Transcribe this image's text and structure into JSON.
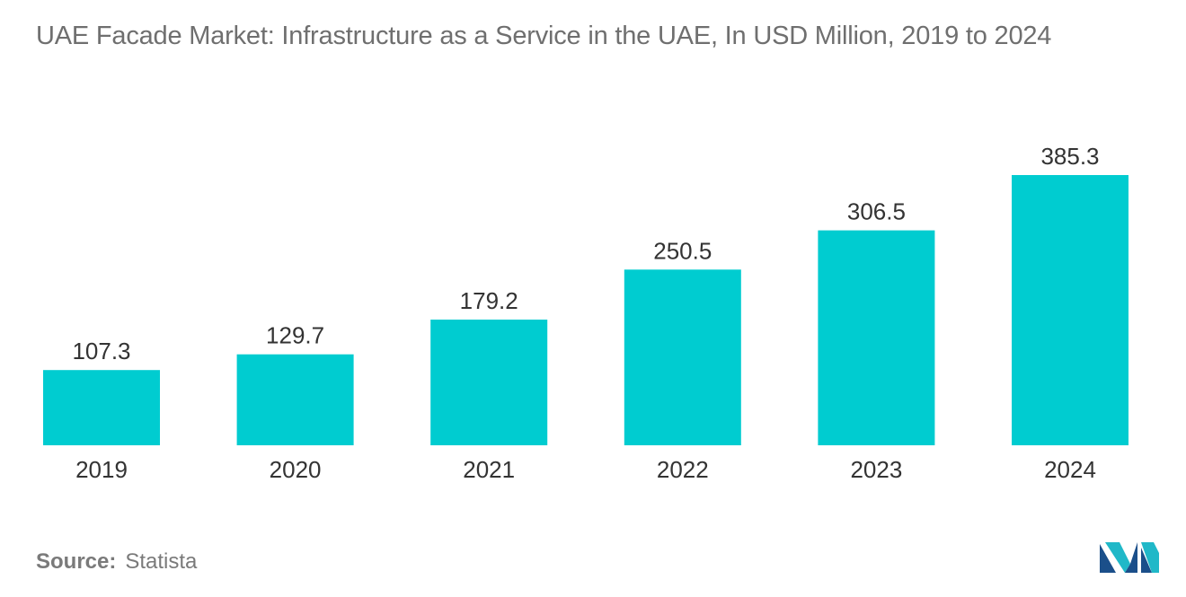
{
  "chart_data": {
    "type": "bar",
    "title": "UAE Facade Market: Infrastructure as a Service in the UAE, In USD Million, 2019 to 2024",
    "categories": [
      "2019",
      "2020",
      "2021",
      "2022",
      "2023",
      "2024"
    ],
    "values": [
      107.3,
      129.7,
      179.2,
      250.5,
      306.5,
      385.3
    ],
    "value_labels": [
      "107.3",
      "129.7",
      "179.2",
      "250.5",
      "306.5",
      "385.3"
    ],
    "xlabel": "",
    "ylabel": "",
    "ylim": [
      0,
      385.3
    ],
    "grid": false,
    "legend": "none",
    "bar_color": "#00ccd0"
  },
  "source": {
    "label": "Source:",
    "value": "Statista"
  },
  "colors": {
    "title": "#6f6f6f",
    "text": "#333333",
    "logo_dark": "#1b4f8a",
    "logo_light": "#20b8c8"
  },
  "logo": {
    "icon": "mordor-intelligence-logo-icon"
  }
}
